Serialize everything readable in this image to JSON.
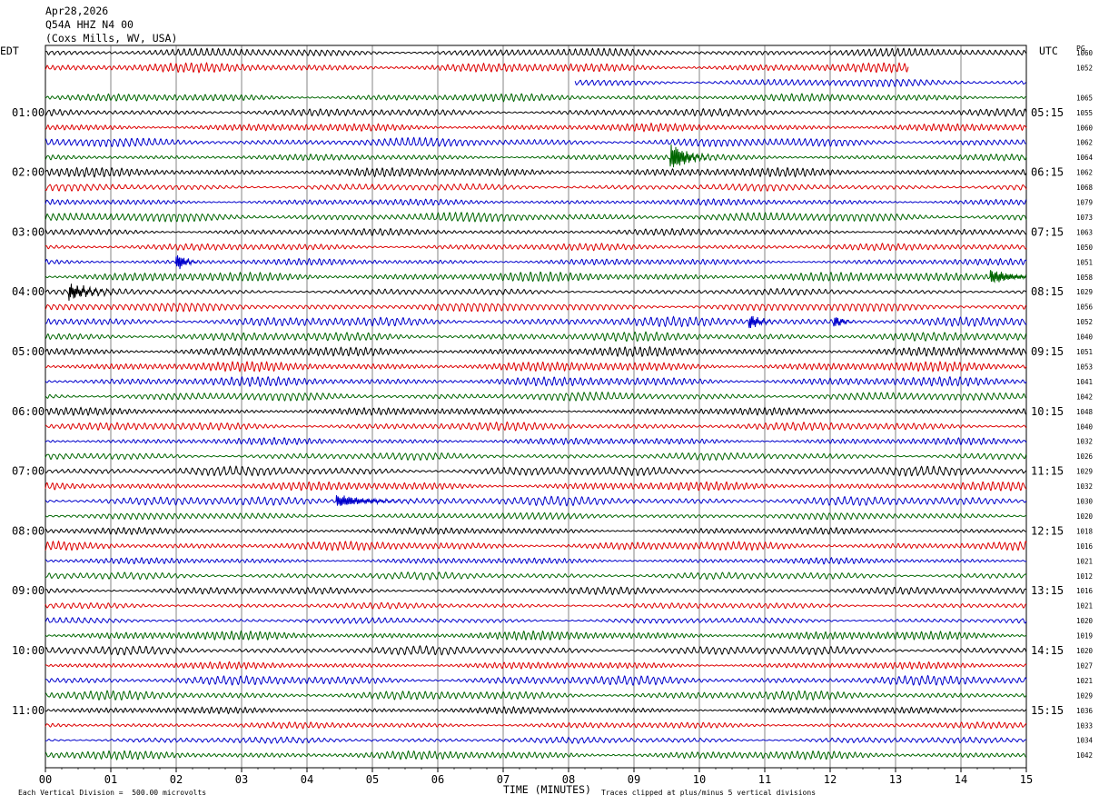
{
  "header": {
    "date": "Apr28,2026",
    "station": "Q54A HHZ N4 00",
    "location": "(Coxs Mills, WV, USA)"
  },
  "left_zone": "EDT",
  "right_zone": "UTC",
  "pg_label": "PG",
  "xlabel": "TIME (MINUTES)",
  "footer_left": "Each Vertical Division =  500.00 microvolts",
  "footer_right": "Traces clipped at plus/minus 5 vertical divisions",
  "chart_data": {
    "type": "line",
    "x_ticks": [
      "00",
      "01",
      "02",
      "03",
      "04",
      "05",
      "06",
      "07",
      "08",
      "09",
      "10",
      "11",
      "12",
      "13",
      "14",
      "15"
    ],
    "xlim": [
      0,
      15
    ],
    "left_hour_labels": [
      {
        "row": 4,
        "label": "01:00"
      },
      {
        "row": 8,
        "label": "02:00"
      },
      {
        "row": 12,
        "label": "03:00"
      },
      {
        "row": 16,
        "label": "04:00"
      },
      {
        "row": 20,
        "label": "05:00"
      },
      {
        "row": 24,
        "label": "06:00"
      },
      {
        "row": 28,
        "label": "07:00"
      },
      {
        "row": 32,
        "label": "08:00"
      },
      {
        "row": 36,
        "label": "09:00"
      },
      {
        "row": 40,
        "label": "10:00"
      },
      {
        "row": 44,
        "label": "11:00"
      }
    ],
    "right_hour_labels": [
      {
        "row": 4,
        "label": "05:15"
      },
      {
        "row": 8,
        "label": "06:15"
      },
      {
        "row": 12,
        "label": "07:15"
      },
      {
        "row": 16,
        "label": "08:15"
      },
      {
        "row": 20,
        "label": "09:15"
      },
      {
        "row": 24,
        "label": "10:15"
      },
      {
        "row": 28,
        "label": "11:15"
      },
      {
        "row": 32,
        "label": "12:15"
      },
      {
        "row": 36,
        "label": "13:15"
      },
      {
        "row": 40,
        "label": "14:15"
      },
      {
        "row": 44,
        "label": "15:15"
      }
    ],
    "row_values": [
      "1060",
      "1052",
      "",
      "1065",
      "1055",
      "1060",
      "1062",
      "1064",
      "1062",
      "1068",
      "1079",
      "1073",
      "1063",
      "1050",
      "1051",
      "1058",
      "1029",
      "1056",
      "1052",
      "1040",
      "1051",
      "1053",
      "1041",
      "1042",
      "1048",
      "1040",
      "1032",
      "1026",
      "1029",
      "1032",
      "1030",
      "1020",
      "1018",
      "1016",
      "1021",
      "1012",
      "1016",
      "1021",
      "1020",
      "1019",
      "1020",
      "1027",
      "1021",
      "1029",
      "1036",
      "1033",
      "1034",
      "1042"
    ],
    "series_colors": [
      "#000000",
      "#dd0000",
      "#0000cc",
      "#006600"
    ],
    "rows": 48,
    "partial_rows": [
      {
        "row": 1,
        "x_end": 13.2
      },
      {
        "row": 2,
        "x_start": 8.1
      }
    ],
    "events": [
      {
        "row": 7,
        "x": 9.6,
        "amp": 2.6,
        "dur": 0.6
      },
      {
        "row": 14,
        "x": 2.05,
        "amp": 1.4,
        "dur": 0.3
      },
      {
        "row": 15,
        "x": 14.5,
        "amp": 1.3,
        "dur": 0.8
      },
      {
        "row": 16,
        "x": 0.4,
        "amp": 1.5,
        "dur": 0.7
      },
      {
        "row": 18,
        "x": 10.8,
        "amp": 1.2,
        "dur": 0.4
      },
      {
        "row": 18,
        "x": 12.1,
        "amp": 1.0,
        "dur": 0.3
      },
      {
        "row": 30,
        "x": 4.5,
        "amp": 1.1,
        "dur": 1.2
      }
    ]
  }
}
